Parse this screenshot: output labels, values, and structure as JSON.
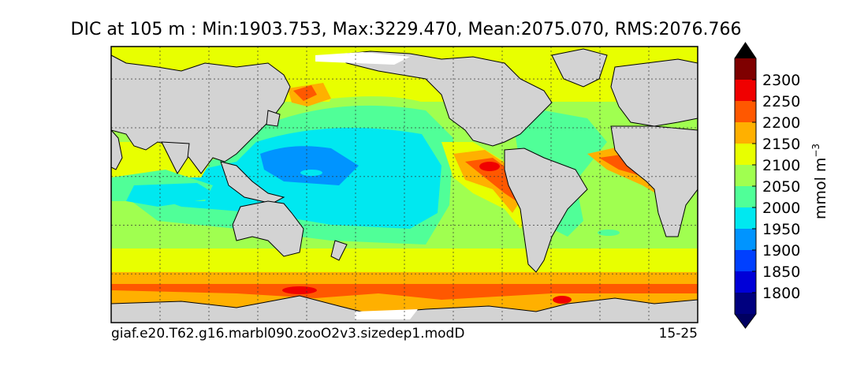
{
  "chart_data": {
    "type": "heatmap",
    "title": "DIC at 105 m : Min:1903.753, Max:3229.470, Mean:2075.070, RMS:2076.766",
    "variable": "DIC",
    "depth": "105 m",
    "stats": {
      "min": 1903.753,
      "max": 3229.47,
      "mean": 2075.07,
      "rms": 2076.766
    },
    "projection": "global latitude-longitude map, Pacific-centered",
    "grid": true,
    "land_color": "#d3d3d3",
    "colorbar": {
      "label": "mmol m",
      "label_exponent": "−3",
      "ticks": [
        2300,
        2250,
        2200,
        2150,
        2100,
        2050,
        2000,
        1950,
        1900,
        1850,
        1800
      ],
      "levels": [
        1750,
        1800,
        1850,
        1900,
        1950,
        2000,
        2050,
        2100,
        2150,
        2200,
        2250,
        2300,
        2350
      ],
      "colors": [
        "#00007f",
        "#0000d8",
        "#0040ff",
        "#0094ff",
        "#00e8f0",
        "#50ff98",
        "#a0ff50",
        "#e8ff00",
        "#ffb000",
        "#ff5800",
        "#f00000",
        "#7f0000"
      ],
      "extend": "both",
      "under_color": "#000060",
      "over_color": "#000000"
    },
    "footer_left": "giaf.e20.T62.g16.marbl090.zooO2v3.sizedep1.modD",
    "footer_right": "15-25"
  }
}
